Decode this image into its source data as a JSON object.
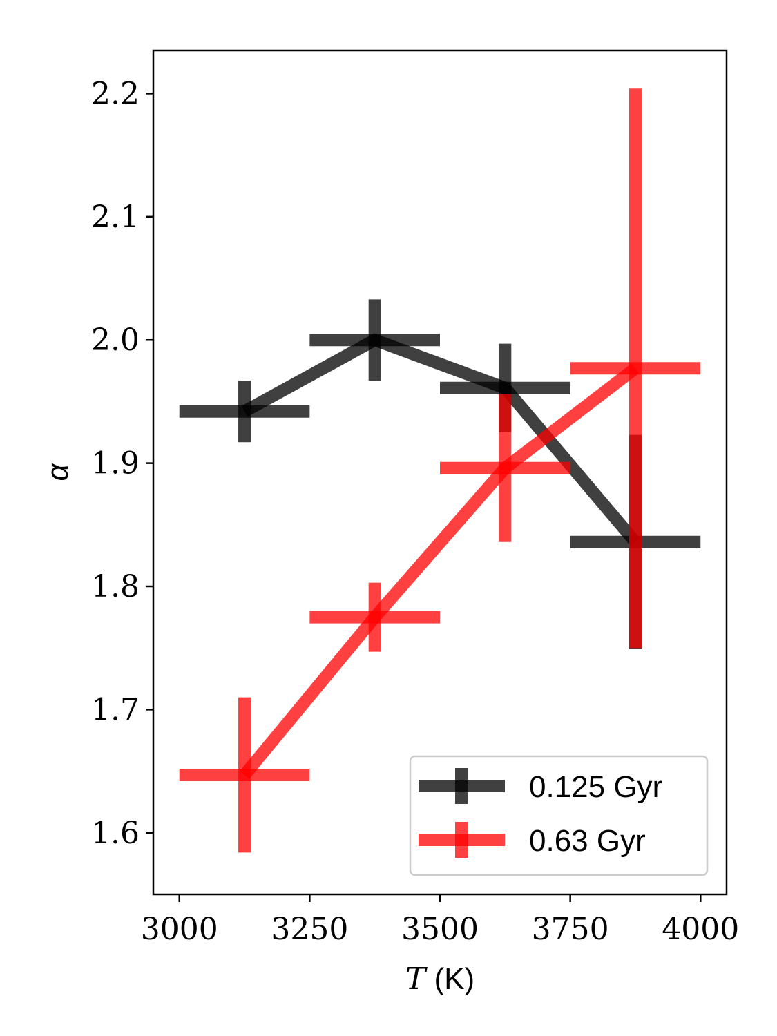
{
  "chart_data": {
    "type": "line",
    "xlabel_var": "T",
    "xlabel_unit": " (K)",
    "ylabel": "α",
    "xlim": [
      2950,
      4050
    ],
    "ylim": [
      1.55,
      2.235
    ],
    "xticks": [
      3000,
      3250,
      3500,
      3750,
      4000
    ],
    "yticks": [
      1.6,
      1.7,
      1.8,
      1.9,
      2.0,
      2.1,
      2.2
    ],
    "xtick_labels": [
      "3000",
      "3250",
      "3500",
      "3750",
      "4000"
    ],
    "ytick_labels": [
      "1.6",
      "1.7",
      "1.8",
      "1.9",
      "2.0",
      "2.1",
      "2.2"
    ],
    "grid": false,
    "legend_position": "lower-right",
    "series": [
      {
        "name": "0.125 Gyr",
        "color": "#000000",
        "x": [
          3125,
          3375,
          3625,
          3875
        ],
        "y": [
          1.942,
          2.0,
          1.961,
          1.836
        ],
        "xerr": [
          125,
          125,
          125,
          125
        ],
        "yerr": [
          0.025,
          0.033,
          0.036,
          0.087
        ]
      },
      {
        "name": "0.63 Gyr",
        "color": "#ff0000",
        "x": [
          3125,
          3375,
          3625,
          3875
        ],
        "y": [
          1.647,
          1.775,
          1.896,
          1.977
        ],
        "xerr": [
          125,
          125,
          125,
          125
        ],
        "yerr": [
          0.063,
          0.028,
          0.06,
          0.227
        ]
      }
    ]
  }
}
